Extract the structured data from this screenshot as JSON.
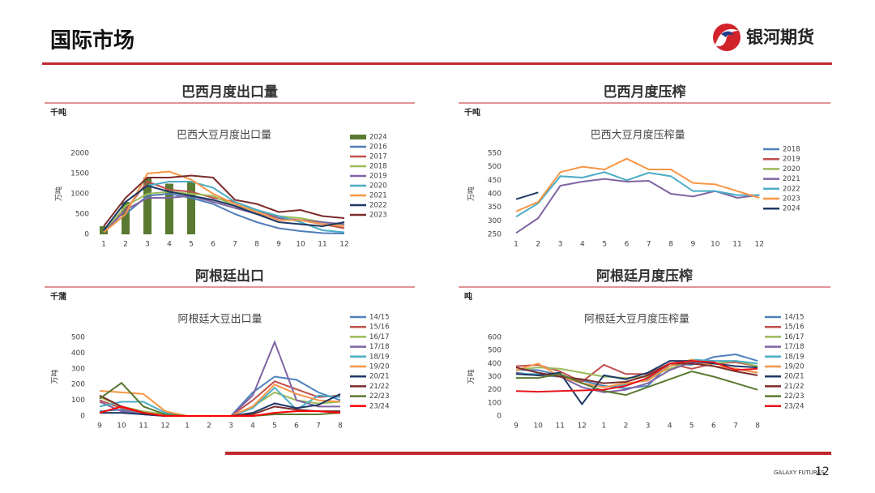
{
  "header": {
    "title": "国际市场",
    "logo": "银河期货"
  },
  "footer": {
    "brand": "GALAXY FUTURES",
    "page": "12"
  },
  "chart_data": [
    {
      "type": "line",
      "section_title": "巴西月度出口量",
      "unit": "千吨",
      "title": "巴西大豆月度出口量",
      "y_label": "万吨",
      "categories": [
        "1",
        "2",
        "3",
        "4",
        "5",
        "6",
        "7",
        "8",
        "9",
        "10",
        "11",
        "12"
      ],
      "ylim": [
        0,
        2000
      ],
      "yticks": [
        0,
        500,
        1000,
        1500,
        2000
      ],
      "series": [
        {
          "name": "2024",
          "type": "bar",
          "color": "#5a7a32",
          "values": [
            200,
            800,
            1400,
            1250,
            1320,
            null,
            null,
            null,
            null,
            null,
            null,
            null
          ]
        },
        {
          "name": "2016",
          "color": "#4f7db8",
          "values": [
            50,
            500,
            950,
            1000,
            900,
            750,
            500,
            300,
            150,
            80,
            30,
            20
          ]
        },
        {
          "name": "2017",
          "color": "#c0504d",
          "values": [
            100,
            600,
            1300,
            1100,
            1050,
            900,
            800,
            600,
            400,
            350,
            250,
            150
          ]
        },
        {
          "name": "2018",
          "color": "#9bbb59",
          "values": [
            50,
            700,
            1000,
            1050,
            1000,
            950,
            700,
            600,
            450,
            400,
            300,
            200
          ]
        },
        {
          "name": "2019",
          "color": "#8064a2",
          "values": [
            50,
            600,
            900,
            900,
            950,
            800,
            650,
            500,
            400,
            350,
            300,
            250
          ]
        },
        {
          "name": "2020",
          "color": "#4bacc6",
          "values": [
            100,
            800,
            1200,
            1300,
            1300,
            1150,
            800,
            600,
            450,
            300,
            100,
            50
          ]
        },
        {
          "name": "2021",
          "color": "#f79646",
          "values": [
            50,
            500,
            1500,
            1550,
            1350,
            1000,
            750,
            550,
            350,
            350,
            250,
            200
          ]
        },
        {
          "name": "2022",
          "color": "#1f3864",
          "values": [
            100,
            800,
            1200,
            1050,
            950,
            850,
            700,
            500,
            300,
            250,
            200,
            300
          ]
        },
        {
          "name": "2023",
          "color": "#7b2c2c",
          "values": [
            200,
            900,
            1400,
            1400,
            1450,
            1400,
            850,
            750,
            550,
            600,
            450,
            400
          ]
        }
      ]
    },
    {
      "type": "line",
      "section_title": "巴西月度压榨",
      "unit": "千吨",
      "title": "巴西大豆月度压榨量",
      "y_label": "万吨",
      "categories": [
        "1",
        "2",
        "3",
        "4",
        "5",
        "6",
        "7",
        "8",
        "9",
        "10",
        "11",
        "12"
      ],
      "ylim": [
        250,
        550
      ],
      "yticks": [
        250,
        300,
        350,
        400,
        450,
        500,
        550
      ],
      "series": [
        {
          "name": "2018",
          "color": "#4f81bd",
          "values": [
            null,
            null,
            null,
            null,
            null,
            null,
            null,
            null,
            null,
            null,
            null,
            null
          ]
        },
        {
          "name": "2019",
          "color": "#c0504d",
          "values": [
            null,
            null,
            null,
            null,
            null,
            null,
            null,
            null,
            null,
            null,
            null,
            null
          ]
        },
        {
          "name": "2020",
          "color": "#9bbb59",
          "values": [
            null,
            null,
            null,
            null,
            null,
            null,
            null,
            null,
            null,
            null,
            null,
            null
          ]
        },
        {
          "name": "2021",
          "color": "#8064a2",
          "values": [
            255,
            310,
            430,
            445,
            455,
            445,
            448,
            400,
            390,
            410,
            385,
            395
          ]
        },
        {
          "name": "2022",
          "color": "#4bacc6",
          "values": [
            315,
            365,
            465,
            460,
            480,
            450,
            478,
            465,
            410,
            410,
            395,
            395
          ]
        },
        {
          "name": "2023",
          "color": "#f79646",
          "values": [
            335,
            370,
            480,
            500,
            490,
            530,
            490,
            490,
            440,
            435,
            410,
            385
          ]
        },
        {
          "name": "2024",
          "color": "#1f3864",
          "values": [
            380,
            405,
            null,
            null,
            null,
            null,
            null,
            null,
            null,
            null,
            null,
            null
          ]
        }
      ]
    },
    {
      "type": "line",
      "section_title": "阿根廷出口",
      "unit": "千蒲",
      "title": "阿根廷大豆出口量",
      "y_label": "万吨",
      "categories": [
        "9",
        "10",
        "11",
        "12",
        "1",
        "2",
        "3",
        "4",
        "5",
        "6",
        "7",
        "8"
      ],
      "ylim": [
        0,
        500
      ],
      "yticks": [
        0,
        100,
        200,
        300,
        400,
        500
      ],
      "series": [
        {
          "name": "14/15",
          "color": "#4f81bd",
          "values": [
            30,
            40,
            10,
            0,
            0,
            0,
            0,
            150,
            250,
            230,
            150,
            100
          ]
        },
        {
          "name": "15/16",
          "color": "#c0504d",
          "values": [
            100,
            50,
            20,
            5,
            0,
            0,
            0,
            100,
            220,
            170,
            120,
            130
          ]
        },
        {
          "name": "16/17",
          "color": "#9bbb59",
          "values": [
            120,
            60,
            30,
            10,
            0,
            0,
            0,
            60,
            150,
            100,
            80,
            90
          ]
        },
        {
          "name": "17/18",
          "color": "#8064a2",
          "values": [
            90,
            30,
            10,
            0,
            0,
            0,
            0,
            130,
            470,
            100,
            60,
            60
          ]
        },
        {
          "name": "18/19",
          "color": "#4bacc6",
          "values": [
            60,
            90,
            90,
            20,
            0,
            0,
            0,
            50,
            180,
            40,
            130,
            120
          ]
        },
        {
          "name": "19/20",
          "color": "#f79646",
          "values": [
            160,
            150,
            140,
            30,
            0,
            0,
            0,
            60,
            200,
            140,
            100,
            90
          ]
        },
        {
          "name": "20/21",
          "color": "#1f3864",
          "values": [
            20,
            20,
            10,
            0,
            0,
            0,
            0,
            20,
            80,
            50,
            70,
            140
          ]
        },
        {
          "name": "21/22",
          "color": "#7b2c2c",
          "values": [
            130,
            60,
            20,
            0,
            0,
            0,
            0,
            10,
            60,
            40,
            30,
            30
          ]
        },
        {
          "name": "22/23",
          "color": "#5a7a32",
          "values": [
            110,
            210,
            60,
            10,
            0,
            0,
            0,
            0,
            10,
            10,
            10,
            20
          ]
        },
        {
          "name": "23/24",
          "color": "#ff0000",
          "values": [
            20,
            60,
            20,
            0,
            0,
            0,
            0,
            0,
            20,
            30,
            30,
            20
          ]
        }
      ]
    },
    {
      "type": "line",
      "section_title": "阿根廷月度压榨",
      "unit": "吨",
      "title": "阿根廷大豆月度压榨量",
      "y_label": "万吨",
      "categories": [
        "9",
        "10",
        "11",
        "12",
        "1",
        "2",
        "3",
        "4",
        "5",
        "6",
        "7",
        "8"
      ],
      "ylim": [
        0,
        600
      ],
      "yticks": [
        0,
        100,
        200,
        300,
        400,
        500,
        600
      ],
      "series": [
        {
          "name": "14/15",
          "color": "#4f81bd",
          "values": [
            350,
            350,
            310,
            270,
            230,
            210,
            230,
            400,
            390,
            450,
            470,
            420
          ]
        },
        {
          "name": "15/16",
          "color": "#c0504d",
          "values": [
            380,
            390,
            340,
            260,
            390,
            320,
            320,
            400,
            360,
            400,
            410,
            380
          ]
        },
        {
          "name": "16/17",
          "color": "#9bbb59",
          "values": [
            350,
            370,
            360,
            330,
            300,
            290,
            300,
            360,
            420,
            400,
            420,
            380
          ]
        },
        {
          "name": "17/18",
          "color": "#8064a2",
          "values": [
            330,
            310,
            300,
            220,
            180,
            200,
            250,
            350,
            410,
            380,
            360,
            330
          ]
        },
        {
          "name": "18/19",
          "color": "#4bacc6",
          "values": [
            320,
            320,
            300,
            250,
            220,
            240,
            280,
            380,
            430,
            420,
            420,
            400
          ]
        },
        {
          "name": "19/20",
          "color": "#f79646",
          "values": [
            350,
            400,
            300,
            250,
            220,
            250,
            270,
            380,
            430,
            380,
            360,
            330
          ]
        },
        {
          "name": "20/21",
          "color": "#1f3864",
          "values": [
            320,
            310,
            330,
            90,
            310,
            280,
            330,
            420,
            420,
            400,
            380,
            370
          ]
        },
        {
          "name": "21/22",
          "color": "#7b2c2c",
          "values": [
            370,
            330,
            300,
            280,
            250,
            260,
            310,
            400,
            400,
            380,
            340,
            310
          ]
        },
        {
          "name": "22/23",
          "color": "#5a7a32",
          "values": [
            290,
            290,
            320,
            250,
            190,
            160,
            220,
            280,
            340,
            300,
            250,
            200
          ]
        },
        {
          "name": "23/24",
          "color": "#e8141b",
          "values": [
            190,
            185,
            190,
            195,
            200,
            230,
            290,
            400,
            420,
            410,
            350,
            360
          ]
        }
      ]
    }
  ]
}
